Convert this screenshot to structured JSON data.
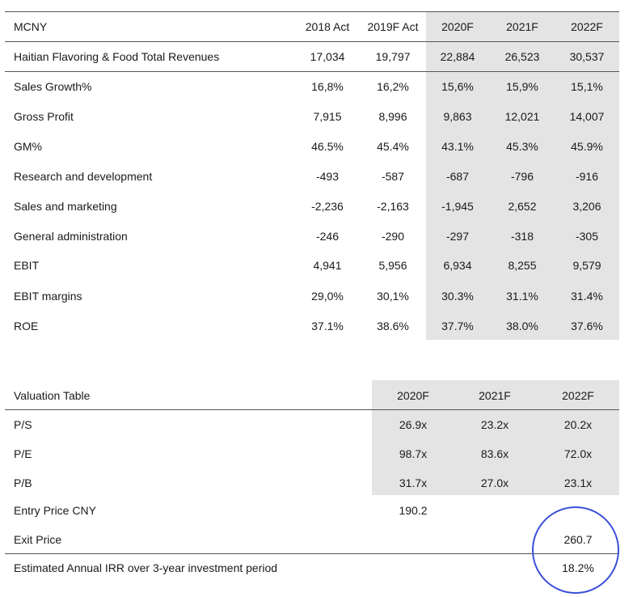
{
  "financial_table": {
    "header": {
      "label": "MCNY",
      "columns": [
        "2018 Act",
        "2019F Act",
        "2020F",
        "2021F",
        "2022F"
      ]
    },
    "rows": [
      {
        "label": "Haitian Flavoring & Food Total Revenues",
        "values": [
          "17,034",
          "19,797",
          "22,884",
          "26,523",
          "30,537"
        ]
      },
      {
        "label": "Sales Growth%",
        "values": [
          "16,8%",
          "16,2%",
          "15,6%",
          "15,9%",
          "15,1%"
        ]
      },
      {
        "label": "Gross Profit",
        "values": [
          "7,915",
          "8,996",
          "9,863",
          "12,021",
          "14,007"
        ]
      },
      {
        "label": "GM%",
        "values": [
          "46.5%",
          "45.4%",
          "43.1%",
          "45.3%",
          "45.9%"
        ]
      },
      {
        "label": "Research and development",
        "values": [
          "-493",
          "-587",
          "-687",
          "-796",
          "-916"
        ]
      },
      {
        "label": "Sales and marketing",
        "values": [
          "-2,236",
          "-2,163",
          "-1,945",
          "2,652",
          "3,206"
        ]
      },
      {
        "label": "General administration",
        "values": [
          "-246",
          "-290",
          "-297",
          "-318",
          "-305"
        ]
      },
      {
        "label": "EBIT",
        "values": [
          "4,941",
          "5,956",
          "6,934",
          "8,255",
          "9,579"
        ]
      },
      {
        "label": "EBIT margins",
        "values": [
          "29,0%",
          "30,1%",
          "30.3%",
          "31.1%",
          "31.4%"
        ]
      },
      {
        "label": "ROE",
        "values": [
          "37.1%",
          "38.6%",
          "37.7%",
          "38.0%",
          "37.6%"
        ]
      }
    ]
  },
  "valuation_table": {
    "header": {
      "label": "Valuation Table",
      "columns": [
        "2020F",
        "2021F",
        "2022F"
      ]
    },
    "rows": [
      {
        "label": "P/S",
        "values": [
          "26.9x",
          "23.2x",
          "20.2x"
        ]
      },
      {
        "label": "P/E",
        "values": [
          "98.7x",
          "83.6x",
          "72.0x"
        ]
      },
      {
        "label": "P/B",
        "values": [
          "31.7x",
          "27.0x",
          "23.1x"
        ]
      }
    ],
    "entry_price": {
      "label": "Entry Price CNY",
      "value": "190.2"
    },
    "exit_price": {
      "label": "Exit Price",
      "value": "260.7"
    },
    "irr": {
      "label": "Estimated Annual IRR over 3-year investment period",
      "value": "18.2%"
    }
  },
  "colors": {
    "shade": "#e4e4e4",
    "line": "#555555",
    "circle": "#3a4fd8"
  }
}
